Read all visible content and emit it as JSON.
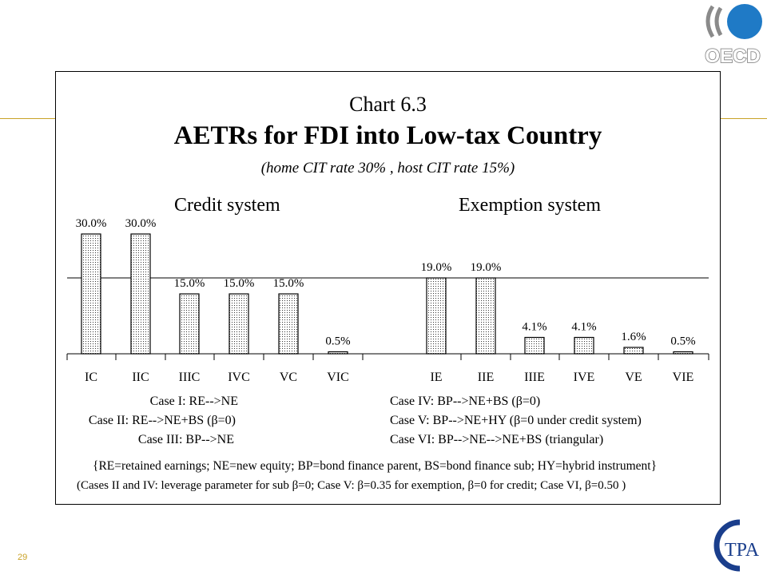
{
  "slide": {
    "page_number": "29",
    "logos": {
      "top_right": "OECD",
      "bottom_right": "TPA"
    },
    "colors": {
      "gold_rule": "#c9a227",
      "oecd_blue": "#1f7ac6",
      "oecd_gray": "#8a8a8a",
      "ctpa_blue": "#1a3e8c"
    }
  },
  "chart_data": {
    "type": "bar",
    "chart_number": "Chart 6.3",
    "title": "AETRs for FDI into Low-tax Country",
    "subtitle": "(home CIT rate 30% ,  host CIT rate 15%)",
    "groups": [
      "Credit system",
      "Exemption system"
    ],
    "categories": [
      "IC",
      "IIC",
      "IIIC",
      "IVC",
      "VC",
      "VIC",
      "IE",
      "IIE",
      "IIIE",
      "IVE",
      "VE",
      "VIE"
    ],
    "values": [
      30.0,
      30.0,
      15.0,
      15.0,
      15.0,
      0.5,
      19.0,
      19.0,
      4.1,
      4.1,
      1.6,
      0.5
    ],
    "data_labels": [
      "30.0%",
      "30.0%",
      "15.0%",
      "15.0%",
      "15.0%",
      "0.5%",
      "19.0%",
      "19.0%",
      "4.1%",
      "4.1%",
      "1.6%",
      "0.5%"
    ],
    "reference_line": 19.0,
    "ylim": [
      0,
      35
    ],
    "bar_fill": "dotted",
    "cases": [
      {
        "label": "Case I:",
        "text": "RE-->NE"
      },
      {
        "label": "Case II:",
        "text": "RE-->NE+BS (β=0)"
      },
      {
        "label": "Case III:",
        "text": "BP-->NE"
      },
      {
        "label": "Case IV:",
        "text": "BP-->NE+BS (β=0)"
      },
      {
        "label": "Case V:",
        "text": "BP-->NE+HY (β=0 under credit system)"
      },
      {
        "label": "Case VI:",
        "text": "BP-->NE-->NE+BS  (triangular)"
      }
    ],
    "notes": [
      "{RE=retained earnings; NE=new equity; BP=bond finance parent, BS=bond finance sub; HY=hybrid instrument}",
      "(Cases II and IV: leverage parameter for sub β=0;  Case V:  β=0.35 for exemption, β=0 for credit;  Case VI, β=0.50 )"
    ]
  }
}
